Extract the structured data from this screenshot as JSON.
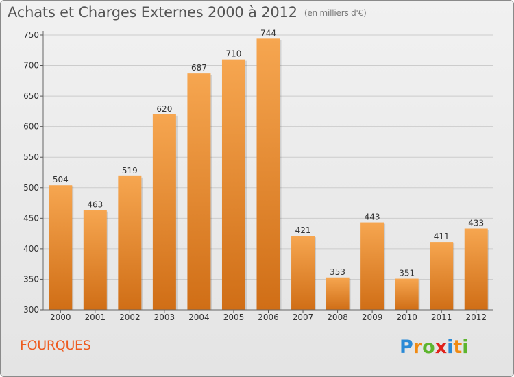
{
  "title": "Achats et Charges Externes 2000 à 2012",
  "subtitle": "(en milliers d'€)",
  "commune": "FOURQUES",
  "logo": {
    "text": "Proxiti",
    "letters": [
      {
        "ch": "P",
        "color": "#2a8ad6"
      },
      {
        "ch": "r",
        "color": "#f08a12"
      },
      {
        "ch": "o",
        "color": "#5db52e"
      },
      {
        "ch": "x",
        "color": "#e0231c"
      },
      {
        "ch": "i",
        "color": "#2a8ad6"
      },
      {
        "ch": "t",
        "color": "#f08a12"
      },
      {
        "ch": "i",
        "color": "#5db52e"
      }
    ]
  },
  "colors": {
    "bar_top": "#f6a650",
    "bar_bottom": "#d06e16",
    "grid": "#cccccc",
    "axis_text": "#333333",
    "title": "#545454",
    "commune": "#ee5a1e"
  },
  "chart_data": {
    "type": "bar",
    "title": "Achats et Charges Externes 2000 à 2012",
    "subtitle": "(en milliers d'€)",
    "categories": [
      "2000",
      "2001",
      "2002",
      "2003",
      "2004",
      "2005",
      "2006",
      "2007",
      "2008",
      "2009",
      "2010",
      "2011",
      "2012"
    ],
    "values": [
      504,
      463,
      519,
      620,
      687,
      710,
      744,
      421,
      353,
      443,
      351,
      411,
      433
    ],
    "ylim": [
      300,
      750
    ],
    "yticks": [
      300,
      350,
      400,
      450,
      500,
      550,
      600,
      650,
      700,
      750
    ],
    "grid": true
  }
}
